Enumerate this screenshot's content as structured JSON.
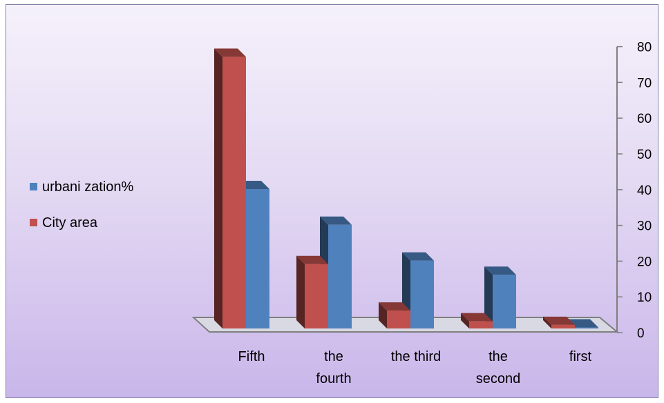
{
  "chart_data": {
    "type": "bar",
    "categories": [
      [
        "Fifth"
      ],
      [
        "the",
        "fourth"
      ],
      [
        "the third"
      ],
      [
        "the",
        "second"
      ],
      [
        "first"
      ]
    ],
    "series": [
      {
        "name": "City area",
        "values": [
          76,
          18,
          5,
          2,
          1
        ],
        "color": "#c0504d"
      },
      {
        "name": "urbani zation%",
        "values": [
          39,
          29,
          19,
          15,
          0.3
        ],
        "color": "#4f81bd"
      }
    ],
    "ylim": [
      0,
      80
    ],
    "yticks": [
      "0",
      "10",
      "20",
      "30",
      "40",
      "50",
      "60",
      "70",
      "80"
    ],
    "y_axis_side": "right",
    "legend_position": "left",
    "legend_order": [
      "urbani zation%",
      "City area"
    ],
    "grid": false,
    "style": "3d-clustered-column"
  }
}
